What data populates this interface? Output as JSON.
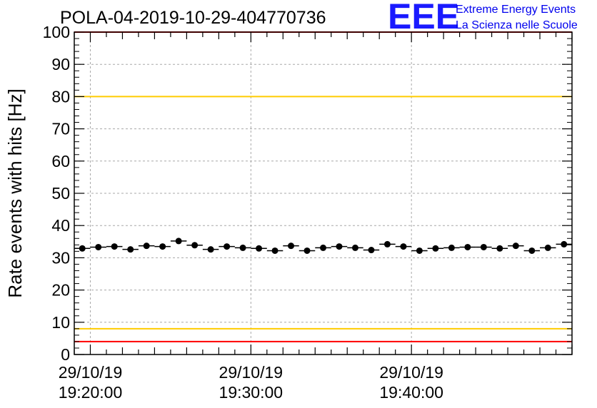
{
  "chart_data": {
    "type": "scatter",
    "title": "POLA-04-2019-10-29-404770736",
    "ylabel": "Rate events with hits [Hz]",
    "ylim": [
      0,
      100
    ],
    "yticks": [
      "0",
      "10",
      "20",
      "30",
      "40",
      "50",
      "60",
      "70",
      "80",
      "90",
      "100"
    ],
    "x_start": "2019-10-29 19:19:00",
    "x_end": "2019-10-29 19:50:00",
    "x_major_ticks": [
      {
        "time": "2019-10-29 19:20:00",
        "line1": "29/10/19",
        "line2": "19:20:00"
      },
      {
        "time": "2019-10-29 19:30:00",
        "line1": "29/10/19",
        "line2": "19:30:00"
      },
      {
        "time": "2019-10-29 19:40:00",
        "line1": "29/10/19",
        "line2": "19:40:00"
      }
    ],
    "grid": true,
    "reference_lines": [
      {
        "y": 100,
        "color": "#ff0000"
      },
      {
        "y": 80,
        "color": "#ffcc00"
      },
      {
        "y": 8,
        "color": "#ffcc00"
      },
      {
        "y": 4,
        "color": "#ff0000"
      }
    ],
    "series": [
      {
        "x": [
          "19:19:30",
          "19:20:30",
          "19:21:30",
          "19:22:30",
          "19:23:30",
          "19:24:30",
          "19:25:30",
          "19:26:30",
          "19:27:30",
          "19:28:30",
          "19:29:30",
          "19:30:30",
          "19:31:30",
          "19:32:30",
          "19:33:30",
          "19:34:30",
          "19:35:30",
          "19:36:30",
          "19:37:30",
          "19:38:30",
          "19:39:30",
          "19:40:30",
          "19:41:30",
          "19:42:30",
          "19:43:30",
          "19:44:30",
          "19:45:30",
          "19:46:30",
          "19:47:30",
          "19:48:30",
          "19:49:30"
        ],
        "y": [
          32.9,
          33.3,
          33.5,
          32.6,
          33.7,
          33.5,
          35.2,
          33.9,
          32.6,
          33.5,
          33.1,
          32.9,
          32.2,
          33.7,
          32.2,
          33.1,
          33.5,
          33.1,
          32.4,
          34.2,
          33.5,
          32.2,
          32.9,
          33.1,
          33.3,
          33.3,
          32.9,
          33.7,
          32.2,
          33.1,
          34.2
        ],
        "color": "#000000"
      }
    ]
  },
  "logo": {
    "mark": "EEE",
    "line1": "Extreme Energy Events",
    "line2": "La Scienza nelle Scuole",
    "colors": {
      "mark": "#1a1aff",
      "text": "#0000ee"
    }
  }
}
